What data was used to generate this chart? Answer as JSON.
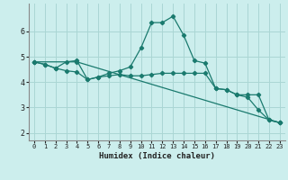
{
  "xlabel": "Humidex (Indice chaleur)",
  "background_color": "#cceeed",
  "grid_color": "#aad6d4",
  "line_color": "#1a7a6e",
  "x_ticks": [
    0,
    1,
    2,
    3,
    4,
    5,
    6,
    7,
    8,
    9,
    10,
    11,
    12,
    13,
    14,
    15,
    16,
    17,
    18,
    19,
    20,
    21,
    22,
    23
  ],
  "ylim": [
    1.7,
    7.1
  ],
  "xlim": [
    -0.5,
    23.5
  ],
  "line1_x": [
    0,
    1,
    2,
    3,
    4,
    5,
    6,
    7,
    8,
    9,
    10,
    11,
    12,
    13,
    14,
    15,
    16,
    17,
    18,
    19,
    20,
    21,
    22,
    23
  ],
  "line1_y": [
    4.8,
    4.7,
    4.55,
    4.45,
    4.4,
    4.1,
    4.2,
    4.25,
    4.3,
    4.25,
    4.25,
    4.3,
    4.35,
    4.35,
    4.35,
    4.35,
    4.35,
    3.75,
    3.7,
    3.5,
    3.5,
    3.5,
    2.5,
    2.4
  ],
  "line2_x": [
    0,
    1,
    2,
    3,
    4,
    5,
    6,
    7,
    8,
    9,
    10,
    11,
    12,
    13,
    14,
    15,
    16,
    17,
    18,
    19,
    20,
    21,
    22,
    23
  ],
  "line2_y": [
    4.8,
    4.7,
    4.55,
    4.8,
    4.85,
    4.1,
    4.2,
    4.35,
    4.45,
    4.6,
    5.35,
    6.35,
    6.35,
    6.6,
    5.85,
    4.85,
    4.75,
    3.75,
    3.7,
    3.5,
    3.4,
    2.9,
    2.5,
    2.4
  ],
  "line3_x": [
    0,
    4,
    23
  ],
  "line3_y": [
    4.8,
    4.8,
    2.4
  ],
  "yticks": [
    2,
    3,
    4,
    5,
    6
  ],
  "ytick_labels": [
    "2",
    "3",
    "4",
    "5",
    "6"
  ]
}
